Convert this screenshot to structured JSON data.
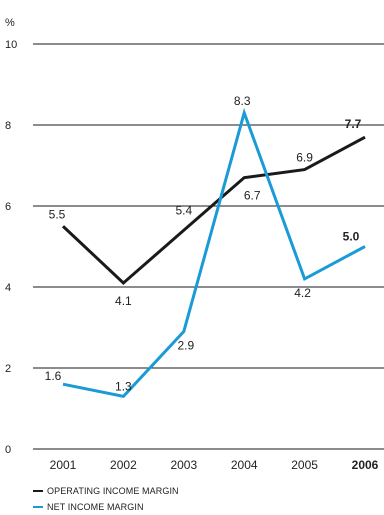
{
  "chart_data": {
    "type": "line",
    "unit_label": "%",
    "categories": [
      "2001",
      "2002",
      "2003",
      "2004",
      "2005",
      "2006"
    ],
    "highlight_category": "2006",
    "ylim": [
      0,
      10
    ],
    "yticks": [
      "0",
      "2",
      "4",
      "6",
      "8",
      "10"
    ],
    "grid": true,
    "series": [
      {
        "name": "OPERATING INCOME MARGIN",
        "color": "#1a1a1a",
        "values": [
          5.5,
          4.1,
          5.4,
          6.7,
          6.9,
          7.7
        ],
        "labels": [
          "5.5",
          "4.1",
          "5.4",
          "6.7",
          "6.9",
          "7.7"
        ]
      },
      {
        "name": "NET INCOME MARGIN",
        "color": "#1a9ad6",
        "values": [
          1.6,
          1.3,
          2.9,
          8.3,
          4.2,
          5.0
        ],
        "labels": [
          "1.6",
          "1.3",
          "2.9",
          "8.3",
          "4.2",
          "5.0"
        ]
      }
    ]
  }
}
